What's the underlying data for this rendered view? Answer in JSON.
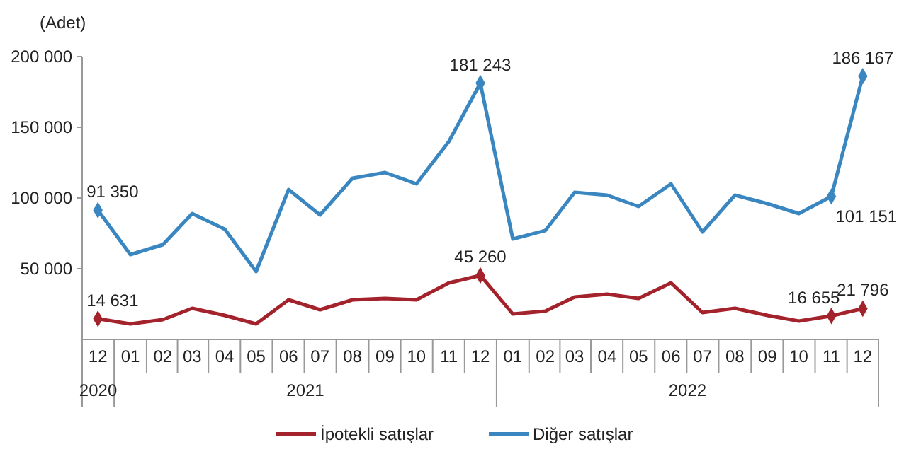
{
  "chart_data": {
    "type": "line",
    "ylabel": "(Adet)",
    "x": [
      "2020-12",
      "2021-01",
      "2021-02",
      "2021-03",
      "2021-04",
      "2021-05",
      "2021-06",
      "2021-07",
      "2021-08",
      "2021-09",
      "2021-10",
      "2021-11",
      "2021-12",
      "2022-01",
      "2022-02",
      "2022-03",
      "2022-04",
      "2022-05",
      "2022-06",
      "2022-07",
      "2022-08",
      "2022-09",
      "2022-10",
      "2022-11",
      "2022-12"
    ],
    "xlim": [
      "2020-11-16",
      "2022-12-16"
    ],
    "xticks": [
      {
        "value": "2020-12",
        "label": "12"
      },
      {
        "value": "2021-01",
        "label": "01"
      },
      {
        "value": "2021-02",
        "label": "02"
      },
      {
        "value": "2021-03",
        "label": "03"
      },
      {
        "value": "2021-04",
        "label": "04"
      },
      {
        "value": "2021-05",
        "label": "05"
      },
      {
        "value": "2021-06",
        "label": "06"
      },
      {
        "value": "2021-07",
        "label": "07"
      },
      {
        "value": "2021-08",
        "label": "08"
      },
      {
        "value": "2021-09",
        "label": "09"
      },
      {
        "value": "2021-10",
        "label": "10"
      },
      {
        "value": "2021-11",
        "label": "11"
      },
      {
        "value": "2021-12",
        "label": "12"
      },
      {
        "value": "2022-01",
        "label": "01"
      },
      {
        "value": "2022-02",
        "label": "02"
      },
      {
        "value": "2022-03",
        "label": "03"
      },
      {
        "value": "2022-04",
        "label": "04"
      },
      {
        "value": "2022-05",
        "label": "05"
      },
      {
        "value": "2022-06",
        "label": "06"
      },
      {
        "value": "2022-07",
        "label": "07"
      },
      {
        "value": "2022-08",
        "label": "08"
      },
      {
        "value": "2022-09",
        "label": "09"
      },
      {
        "value": "2022-10",
        "label": "10"
      },
      {
        "value": "2022-11",
        "label": "11"
      },
      {
        "value": "2022-12",
        "label": "12"
      }
    ],
    "ylim": [
      0,
      200000
    ],
    "yticks": [
      {
        "value": 50000,
        "label": "50 000"
      },
      {
        "value": 100000,
        "label": "100 000"
      },
      {
        "value": 150000,
        "label": "150 000"
      },
      {
        "value": 200000,
        "label": "200 000"
      }
    ],
    "grid": false,
    "legend": "bottom",
    "line_style": "solid",
    "annotations": [
      "2020",
      "2021",
      "2022"
    ],
    "series": [
      {
        "name": "İpotekli satışlar",
        "color": "#a3222b",
        "values": [
          14631,
          11000,
          14000,
          22000,
          17000,
          11000,
          28000,
          21000,
          28000,
          29000,
          28000,
          40000,
          45260,
          18000,
          20000,
          30000,
          32000,
          29000,
          40000,
          19000,
          22000,
          17000,
          13000,
          16655,
          21796
        ],
        "value_labels": [
          "14 631",
          null,
          null,
          null,
          null,
          null,
          null,
          null,
          null,
          null,
          null,
          null,
          "45 260",
          null,
          null,
          null,
          null,
          null,
          null,
          null,
          null,
          null,
          null,
          "16 655",
          "21 796"
        ]
      },
      {
        "name": "Diğer satışlar",
        "color": "#3a86c0",
        "values": [
          91350,
          60000,
          67000,
          89000,
          78000,
          48000,
          106000,
          88000,
          114000,
          118000,
          110000,
          140000,
          181243,
          71000,
          77000,
          104000,
          102000,
          94000,
          110000,
          76000,
          102000,
          96000,
          89000,
          101151,
          186167
        ],
        "value_labels": [
          "91 350",
          null,
          null,
          null,
          null,
          null,
          null,
          null,
          null,
          null,
          null,
          null,
          "181 243",
          null,
          null,
          null,
          null,
          null,
          null,
          null,
          null,
          null,
          null,
          "101 151",
          "186 167"
        ]
      }
    ]
  }
}
